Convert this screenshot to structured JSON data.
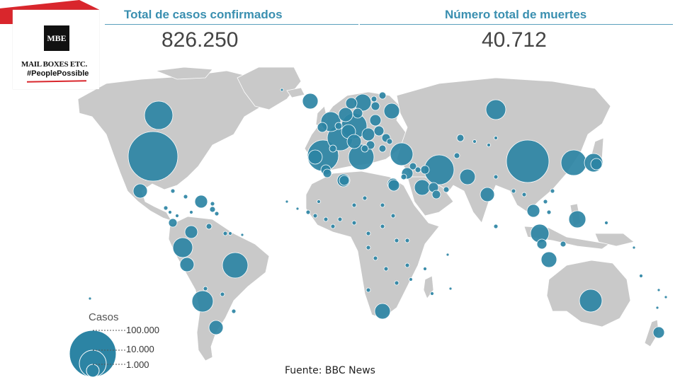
{
  "header": {
    "cases_title": "Total de casos confirmados",
    "cases_value": "826.250",
    "deaths_title": "Número total de muertes",
    "deaths_value": "40.712"
  },
  "logo": {
    "mark": "MBE",
    "name": "MAIL BOXES ETC.",
    "tagline": "#PeoplePossible"
  },
  "legend": {
    "title": "Casos",
    "items": [
      {
        "label": "100.000",
        "value": 100000
      },
      {
        "label": "10.000",
        "value": 10000
      },
      {
        "label": "1.000",
        "value": 1000
      }
    ]
  },
  "source": "Fuente: BBC News",
  "colors": {
    "land": "#c9c9c9",
    "bubble": "#2c84a4",
    "bubble_stroke": "#ffffff",
    "title": "#3a8fb0",
    "value": "#444444",
    "brand_red": "#d9262c"
  }
}
